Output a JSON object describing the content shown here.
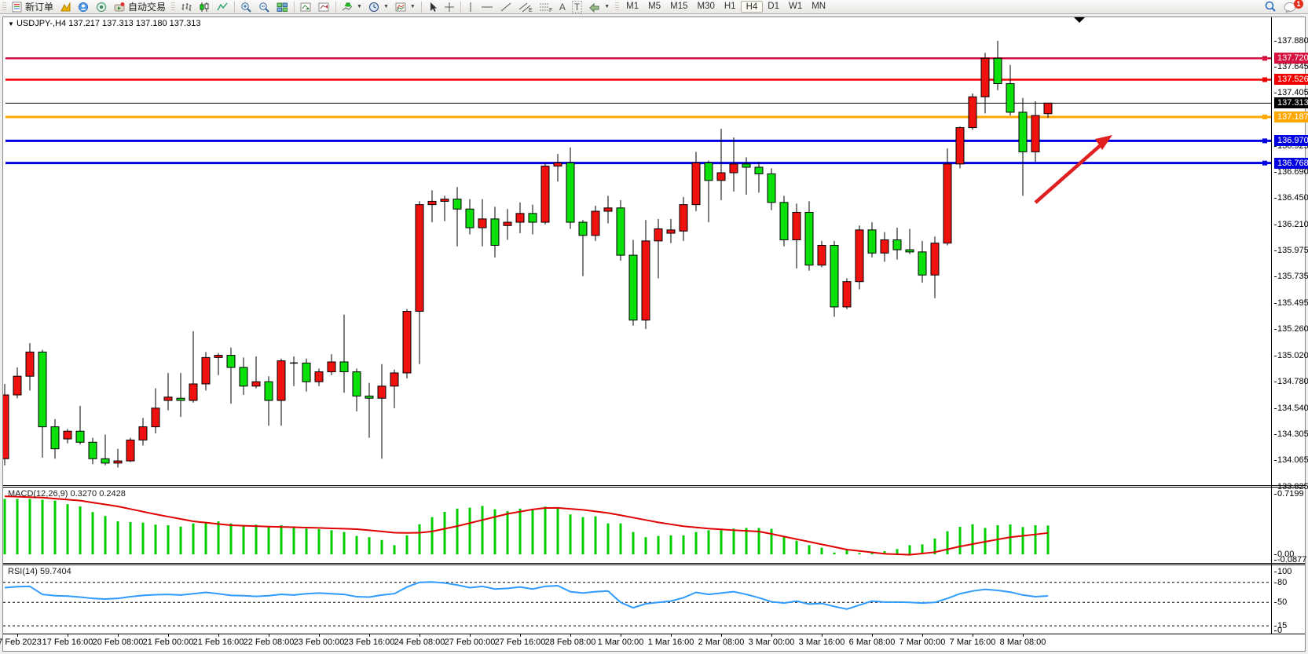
{
  "toolbar": {
    "new_order_label": "新订单",
    "autotrading_label": "自动交易",
    "timeframes": [
      "M1",
      "M5",
      "M15",
      "M30",
      "H1",
      "H4",
      "D1",
      "W1",
      "MN"
    ],
    "active_timeframe": "H4",
    "notification_count": "1"
  },
  "chart_title": {
    "symbol": "USDJPY-,H4",
    "ohlc_text": "137.217 137.313 137.180 137.313"
  },
  "chart_data": {
    "type": "candlestick",
    "symbol": "USDJPY-",
    "timeframe": "H4",
    "current_ohlc": {
      "open": "137.217",
      "high": "137.313",
      "low": "137.180",
      "close": "137.313"
    },
    "price_axis_labels": [
      "137.880",
      "137.645",
      "137.405",
      "137.170",
      "136.925",
      "136.690",
      "136.450",
      "136.210",
      "135.975",
      "135.735",
      "135.495",
      "135.260",
      "135.020",
      "134.780",
      "134.540",
      "134.305",
      "134.065",
      "133.825"
    ],
    "time_labels": [
      {
        "text": "17 Feb 2023",
        "bar": 1
      },
      {
        "text": "17 Feb 16:00",
        "bar": 5
      },
      {
        "text": "20 Feb 08:00",
        "bar": 9
      },
      {
        "text": "21 Feb 00:00",
        "bar": 13
      },
      {
        "text": "21 Feb 16:00",
        "bar": 17
      },
      {
        "text": "22 Feb 08:00",
        "bar": 21
      },
      {
        "text": "23 Feb 00:00",
        "bar": 25
      },
      {
        "text": "23 Feb 16:00",
        "bar": 29
      },
      {
        "text": "24 Feb 08:00",
        "bar": 33
      },
      {
        "text": "27 Feb 00:00",
        "bar": 37
      },
      {
        "text": "27 Feb 16:00",
        "bar": 41
      },
      {
        "text": "28 Feb 08:00",
        "bar": 45
      },
      {
        "text": "1 Mar 00:00",
        "bar": 49
      },
      {
        "text": "1 Mar 16:00",
        "bar": 53
      },
      {
        "text": "2 Mar 08:00",
        "bar": 57
      },
      {
        "text": "3 Mar 00:00",
        "bar": 61
      },
      {
        "text": "3 Mar 16:00",
        "bar": 65
      },
      {
        "text": "6 Mar 08:00",
        "bar": 69
      },
      {
        "text": "7 Mar 00:00",
        "bar": 73
      },
      {
        "text": "7 Mar 16:00",
        "bar": 77
      },
      {
        "text": "8 Mar 08:00",
        "bar": 81
      }
    ],
    "candles_ohlc": [
      [
        134.08,
        134.76,
        134.02,
        134.66
      ],
      [
        134.66,
        134.91,
        134.63,
        134.83
      ],
      [
        134.83,
        135.13,
        134.7,
        135.05
      ],
      [
        135.05,
        135.07,
        134.09,
        134.37
      ],
      [
        134.37,
        134.44,
        134.08,
        134.17
      ],
      [
        134.26,
        134.35,
        134.22,
        134.33
      ],
      [
        134.33,
        134.56,
        134.21,
        134.23
      ],
      [
        134.23,
        134.27,
        134.03,
        134.08
      ],
      [
        134.08,
        134.3,
        134.02,
        134.04
      ],
      [
        134.04,
        134.17,
        134.0,
        134.06
      ],
      [
        134.06,
        134.27,
        134.05,
        134.25
      ],
      [
        134.25,
        134.45,
        134.2,
        134.37
      ],
      [
        134.37,
        134.72,
        134.31,
        134.54
      ],
      [
        134.61,
        134.86,
        134.52,
        134.64
      ],
      [
        134.63,
        134.86,
        134.46,
        134.61
      ],
      [
        134.61,
        135.24,
        134.59,
        134.76
      ],
      [
        134.76,
        135.05,
        134.7,
        135.0
      ],
      [
        135.0,
        135.04,
        134.84,
        135.02
      ],
      [
        135.02,
        135.09,
        134.58,
        134.91
      ],
      [
        134.91,
        135.0,
        134.66,
        134.74
      ],
      [
        134.74,
        135.01,
        134.72,
        134.78
      ],
      [
        134.78,
        134.83,
        134.38,
        134.61
      ],
      [
        134.61,
        134.99,
        134.38,
        134.97
      ],
      [
        134.95,
        135.01,
        134.74,
        134.95
      ],
      [
        134.95,
        134.99,
        134.69,
        134.78
      ],
      [
        134.78,
        134.9,
        134.74,
        134.87
      ],
      [
        134.87,
        135.03,
        134.84,
        134.96
      ],
      [
        134.96,
        135.39,
        134.68,
        134.87
      ],
      [
        134.87,
        134.9,
        134.51,
        134.65
      ],
      [
        134.65,
        134.77,
        134.27,
        134.63
      ],
      [
        134.63,
        134.94,
        134.08,
        134.74
      ],
      [
        134.74,
        134.89,
        134.54,
        134.86
      ],
      [
        134.86,
        135.44,
        134.81,
        135.42
      ],
      [
        135.42,
        136.42,
        134.94,
        136.39
      ],
      [
        136.39,
        136.52,
        136.23,
        136.42
      ],
      [
        136.42,
        136.47,
        136.24,
        136.44
      ],
      [
        136.44,
        136.55,
        136.01,
        136.35
      ],
      [
        136.35,
        136.44,
        136.12,
        136.18
      ],
      [
        136.18,
        136.44,
        136.01,
        136.26
      ],
      [
        136.26,
        136.37,
        135.91,
        136.02
      ],
      [
        136.2,
        136.35,
        136.07,
        136.23
      ],
      [
        136.23,
        136.41,
        136.13,
        136.31
      ],
      [
        136.31,
        136.39,
        136.12,
        136.23
      ],
      [
        136.23,
        136.77,
        136.21,
        136.74
      ],
      [
        136.74,
        136.85,
        136.6,
        136.77
      ],
      [
        136.77,
        136.91,
        136.17,
        136.23
      ],
      [
        136.23,
        136.25,
        135.74,
        136.11
      ],
      [
        136.11,
        136.38,
        136.06,
        136.33
      ],
      [
        136.33,
        136.47,
        136.22,
        136.36
      ],
      [
        136.36,
        136.43,
        135.88,
        135.93
      ],
      [
        135.93,
        136.07,
        135.29,
        135.34
      ],
      [
        135.34,
        136.25,
        135.26,
        136.06
      ],
      [
        136.06,
        136.26,
        135.72,
        136.17
      ],
      [
        136.13,
        136.26,
        136.04,
        136.16
      ],
      [
        136.15,
        136.46,
        136.06,
        136.39
      ],
      [
        136.39,
        136.87,
        136.33,
        136.77
      ],
      [
        136.77,
        136.79,
        136.23,
        136.61
      ],
      [
        136.61,
        137.08,
        136.43,
        136.68
      ],
      [
        136.68,
        137.0,
        136.51,
        136.76
      ],
      [
        136.76,
        136.82,
        136.48,
        136.73
      ],
      [
        136.73,
        136.78,
        136.5,
        136.67
      ],
      [
        136.67,
        136.72,
        136.34,
        136.41
      ],
      [
        136.41,
        136.47,
        136.01,
        136.07
      ],
      [
        136.07,
        136.4,
        135.81,
        136.32
      ],
      [
        136.32,
        136.42,
        135.79,
        135.84
      ],
      [
        135.84,
        136.06,
        135.82,
        136.02
      ],
      [
        136.02,
        136.06,
        135.37,
        135.46
      ],
      [
        135.46,
        135.72,
        135.44,
        135.69
      ],
      [
        135.69,
        136.2,
        135.62,
        136.16
      ],
      [
        136.16,
        136.23,
        135.91,
        135.95
      ],
      [
        135.95,
        136.14,
        135.87,
        136.07
      ],
      [
        136.07,
        136.18,
        135.89,
        135.98
      ],
      [
        135.98,
        136.17,
        135.94,
        135.96
      ],
      [
        135.96,
        136.06,
        135.68,
        135.75
      ],
      [
        135.75,
        136.1,
        135.54,
        136.04
      ],
      [
        136.04,
        136.9,
        136.02,
        136.76
      ],
      [
        136.76,
        137.1,
        136.72,
        137.09
      ],
      [
        137.09,
        137.4,
        137.07,
        137.37
      ],
      [
        137.37,
        137.77,
        137.22,
        137.72
      ],
      [
        137.72,
        137.88,
        137.43,
        137.49
      ],
      [
        137.49,
        137.66,
        137.2,
        137.23
      ],
      [
        137.23,
        137.36,
        136.47,
        136.87
      ],
      [
        136.87,
        137.33,
        136.78,
        137.2
      ],
      [
        137.217,
        137.313,
        137.18,
        137.313
      ]
    ],
    "colors": {
      "bull": "#f01010",
      "bear": "#0ce00c",
      "wick": "#000000"
    },
    "horizontal_lines": [
      {
        "price": "137.720",
        "color": "#d6113f",
        "width": 2.5,
        "badge": true
      },
      {
        "price": "137.526",
        "color": "#f20000",
        "width": 2.5,
        "badge": true
      },
      {
        "price": "137.313",
        "color": "#000000",
        "width": 1,
        "badge": true,
        "role": "current-price"
      },
      {
        "price": "137.187",
        "color": "#ffa800",
        "width": 3,
        "badge": true
      },
      {
        "price": "136.970",
        "color": "#0000e0",
        "width": 3,
        "badge": true
      },
      {
        "price": "136.768",
        "color": "#0000e0",
        "width": 3,
        "badge": true
      }
    ],
    "trend_arrow": {
      "color": "#e02020",
      "direction": "up-right"
    },
    "indicators": [
      {
        "name_label": "MACD(12,26,9)",
        "value1": "0.3270",
        "value2": "0.2428",
        "axis_top": "0.7199",
        "axis_zero": "0.00",
        "axis_min": "-0.0877",
        "histogram_color": "#00cc00",
        "signal_color": "#e00000",
        "histogram": [
          0.63,
          0.63,
          0.63,
          0.62,
          0.61,
          0.57,
          0.545,
          0.48,
          0.435,
          0.375,
          0.366,
          0.36,
          0.337,
          0.33,
          0.315,
          0.351,
          0.366,
          0.375,
          0.351,
          0.33,
          0.337,
          0.315,
          0.33,
          0.306,
          0.292,
          0.286,
          0.274,
          0.253,
          0.208,
          0.194,
          0.163,
          0.104,
          0.214,
          0.342,
          0.422,
          0.482,
          0.52,
          0.53,
          0.55,
          0.512,
          0.49,
          0.52,
          0.506,
          0.542,
          0.536,
          0.453,
          0.422,
          0.431,
          0.351,
          0.351,
          0.253,
          0.194,
          0.208,
          0.214,
          0.214,
          0.253,
          0.274,
          0.274,
          0.292,
          0.3,
          0.3,
          0.29,
          0.208,
          0.154,
          0.104,
          0.074,
          0.02,
          0.045,
          0.015,
          0.018,
          0.036,
          0.06,
          0.104,
          0.113,
          0.179,
          0.262,
          0.312,
          0.342,
          0.3,
          0.33,
          0.34,
          0.31,
          0.33,
          0.327
        ],
        "signal": [
          0.66,
          0.655,
          0.65,
          0.645,
          0.633,
          0.622,
          0.61,
          0.588,
          0.567,
          0.545,
          0.515,
          0.485,
          0.455,
          0.428,
          0.402,
          0.375,
          0.36,
          0.345,
          0.33,
          0.325,
          0.32,
          0.315,
          0.311,
          0.308,
          0.304,
          0.3,
          0.295,
          0.291,
          0.286,
          0.273,
          0.26,
          0.246,
          0.243,
          0.245,
          0.26,
          0.29,
          0.32,
          0.355,
          0.39,
          0.425,
          0.46,
          0.485,
          0.51,
          0.527,
          0.528,
          0.517,
          0.506,
          0.488,
          0.47,
          0.444,
          0.417,
          0.39,
          0.363,
          0.341,
          0.319,
          0.306,
          0.292,
          0.283,
          0.274,
          0.267,
          0.259,
          0.232,
          0.202,
          0.172,
          0.143,
          0.113,
          0.084,
          0.054,
          0.038,
          0.022,
          0.006,
          0.0,
          -0.006,
          0.009,
          0.024,
          0.057,
          0.089,
          0.116,
          0.143,
          0.169,
          0.194,
          0.21,
          0.226,
          0.2428
        ]
      },
      {
        "name_label": "RSI(14)",
        "value1": "59.7404",
        "axis_labels": [
          "100",
          "80",
          "50",
          "15",
          "0"
        ],
        "levels": [
          80,
          50,
          15
        ],
        "line_color": "#2e9bfd",
        "values": [
          72,
          73.5,
          74,
          62,
          60,
          59.5,
          58,
          56,
          55,
          56,
          58.5,
          60.5,
          61.5,
          62,
          61,
          63,
          65,
          63,
          60.5,
          60,
          59,
          60,
          62,
          61,
          63,
          64,
          63,
          62,
          58.5,
          58,
          61,
          63,
          73,
          80,
          80.5,
          79,
          76,
          72,
          74,
          70,
          71,
          73,
          70,
          74,
          75,
          66,
          64,
          66,
          67,
          50,
          42,
          48,
          50,
          52,
          57,
          65,
          62,
          64,
          66,
          62,
          57,
          51,
          49,
          52,
          47.5,
          48.5,
          44,
          40,
          46,
          52,
          50.5,
          50.5,
          50,
          49,
          50,
          56,
          63,
          67,
          69.5,
          68,
          65.5,
          61,
          58.5,
          59.74
        ]
      }
    ]
  }
}
